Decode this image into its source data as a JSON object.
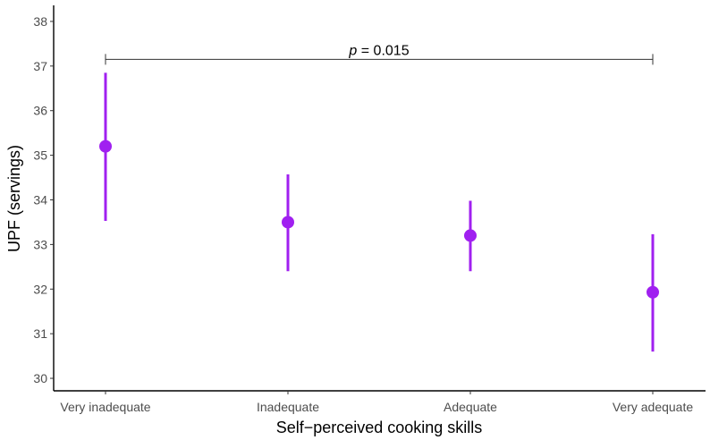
{
  "chart_data": {
    "type": "scatter",
    "title": "",
    "xlabel": "Self−perceived cooking skills",
    "ylabel": "UPF (servings)",
    "categories": [
      "Very inadequate",
      "Inadequate",
      "Adequate",
      "Very adequate"
    ],
    "series": [
      {
        "values": [
          35.2,
          33.5,
          33.2,
          31.93
        ],
        "lower": [
          33.53,
          32.4,
          32.4,
          30.6
        ],
        "upper": [
          36.85,
          34.57,
          33.98,
          33.23
        ]
      }
    ],
    "ylim": [
      29.72,
      38.36
    ],
    "yticks": [
      30,
      31,
      32,
      33,
      34,
      35,
      36,
      37,
      38
    ],
    "grid": false,
    "legend": "none",
    "point_color": "#a020f0",
    "annotation": {
      "p_symbol": "p",
      "p_text": " = 0.015",
      "from_category": "Very inadequate",
      "to_category": "Very adequate",
      "y": 37.15
    }
  }
}
